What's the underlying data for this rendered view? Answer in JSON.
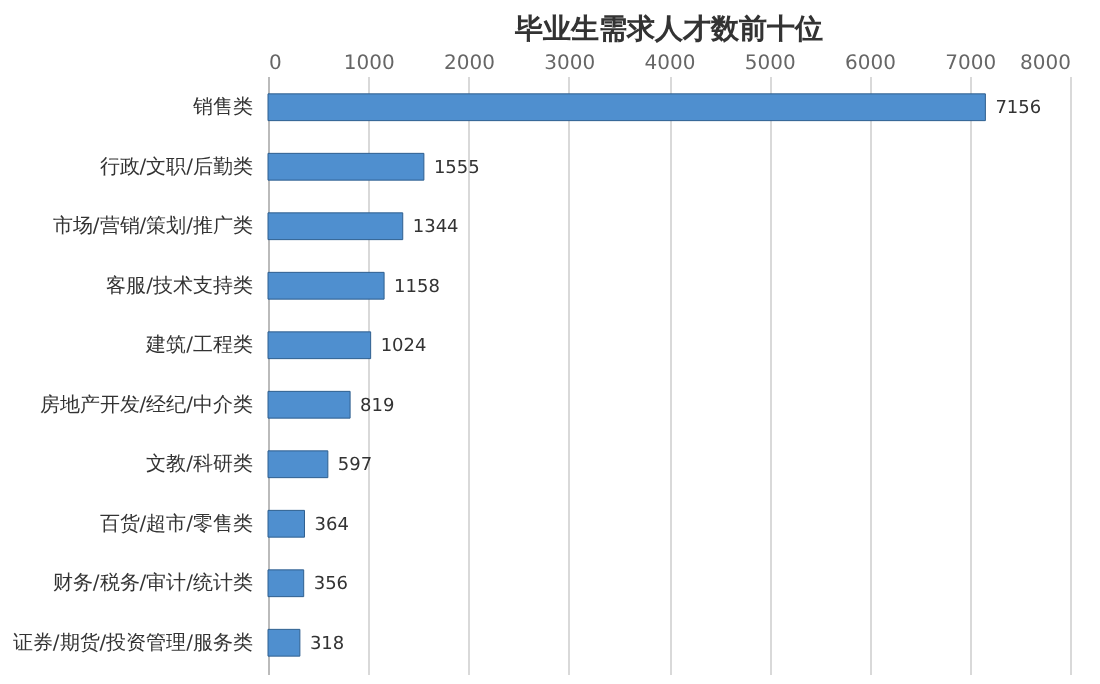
{
  "chart_data": {
    "type": "bar",
    "orientation": "horizontal",
    "title": "毕业生需求人才数前十位",
    "categories": [
      "销售类",
      "行政/文职/后勤类",
      "市场/营销/策划/推广类",
      "客服/技术支持类",
      "建筑/工程类",
      "房地产开发/经纪/中介类",
      "文教/科研类",
      "百货/超市/零售类",
      "财务/税务/审计/统计类",
      "证券/期货/投资管理/服务类"
    ],
    "values": [
      7156,
      1555,
      1344,
      1158,
      1024,
      819,
      597,
      364,
      356,
      318
    ],
    "color": "#4f8fcf",
    "xlim": [
      0,
      8000
    ],
    "xticks": [
      0,
      1000,
      2000,
      3000,
      4000,
      5000,
      6000,
      7000,
      8000
    ],
    "grid": "x",
    "data_labels": true
  }
}
